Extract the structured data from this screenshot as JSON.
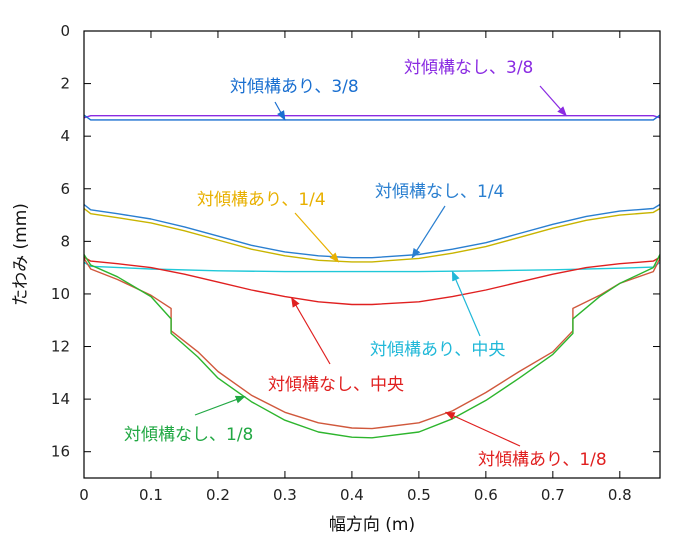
{
  "chart_data": {
    "type": "line",
    "xlabel": "幅方向 (m)",
    "ylabel": "たわみ (mm)",
    "xlim": [
      0,
      0.86
    ],
    "ylim": [
      0,
      17
    ],
    "y_inverted": true,
    "grid": false,
    "x_ticks": [
      "0",
      "0.1",
      "0.2",
      "0.3",
      "0.4",
      "0.5",
      "0.6",
      "0.7",
      "0.8"
    ],
    "x_tick_values": [
      0,
      0.1,
      0.2,
      0.3,
      0.4,
      0.5,
      0.6,
      0.7,
      0.8
    ],
    "y_ticks": [
      "0",
      "2",
      "4",
      "6",
      "8",
      "10",
      "12",
      "14",
      "16"
    ],
    "y_tick_values": [
      0,
      2,
      4,
      6,
      8,
      10,
      12,
      14,
      16
    ],
    "series": [
      {
        "name": "対傾構なし、3/8",
        "color": "#8a2be2",
        "x": [
          0,
          0.01,
          0.1,
          0.2,
          0.3,
          0.4,
          0.43,
          0.5,
          0.6,
          0.7,
          0.8,
          0.85,
          0.86
        ],
        "y": [
          3.3,
          3.22,
          3.22,
          3.22,
          3.22,
          3.22,
          3.22,
          3.22,
          3.22,
          3.22,
          3.22,
          3.22,
          3.3
        ]
      },
      {
        "name": "対傾構あり、3/8",
        "color": "#1a6fd0",
        "x": [
          0,
          0.01,
          0.1,
          0.2,
          0.3,
          0.4,
          0.43,
          0.5,
          0.6,
          0.7,
          0.8,
          0.85,
          0.86
        ],
        "y": [
          3.2,
          3.38,
          3.38,
          3.38,
          3.38,
          3.38,
          3.38,
          3.38,
          3.38,
          3.38,
          3.38,
          3.38,
          3.2
        ]
      },
      {
        "name": "対傾構なし、1/4",
        "color": "#2a7fd0",
        "x": [
          0,
          0.01,
          0.05,
          0.1,
          0.15,
          0.2,
          0.25,
          0.3,
          0.35,
          0.4,
          0.43,
          0.5,
          0.55,
          0.6,
          0.65,
          0.7,
          0.75,
          0.8,
          0.85,
          0.86
        ],
        "y": [
          6.6,
          6.8,
          6.95,
          7.15,
          7.45,
          7.8,
          8.15,
          8.4,
          8.55,
          8.62,
          8.62,
          8.5,
          8.3,
          8.05,
          7.7,
          7.35,
          7.05,
          6.85,
          6.75,
          6.6
        ]
      },
      {
        "name": "対傾構あり、1/4",
        "color": "#c8b400",
        "x": [
          0,
          0.01,
          0.05,
          0.1,
          0.15,
          0.2,
          0.25,
          0.3,
          0.35,
          0.4,
          0.43,
          0.5,
          0.55,
          0.6,
          0.65,
          0.7,
          0.75,
          0.8,
          0.85,
          0.86
        ],
        "y": [
          6.75,
          6.95,
          7.1,
          7.3,
          7.6,
          7.95,
          8.3,
          8.55,
          8.72,
          8.78,
          8.78,
          8.65,
          8.45,
          8.2,
          7.85,
          7.5,
          7.2,
          7.0,
          6.9,
          6.75
        ]
      },
      {
        "name": "対傾構あり、中央",
        "color": "#20c8d8",
        "x": [
          0,
          0.01,
          0.1,
          0.2,
          0.3,
          0.4,
          0.43,
          0.5,
          0.6,
          0.7,
          0.8,
          0.85,
          0.86
        ],
        "y": [
          8.8,
          8.95,
          9.05,
          9.12,
          9.15,
          9.15,
          9.15,
          9.15,
          9.12,
          9.08,
          9.02,
          8.98,
          8.8
        ]
      },
      {
        "name": "対傾構なし、中央",
        "color": "#e02020",
        "x": [
          0,
          0.01,
          0.05,
          0.1,
          0.15,
          0.2,
          0.25,
          0.3,
          0.35,
          0.4,
          0.43,
          0.5,
          0.55,
          0.6,
          0.65,
          0.7,
          0.75,
          0.8,
          0.85,
          0.86
        ],
        "y": [
          8.6,
          8.75,
          8.85,
          9.0,
          9.25,
          9.55,
          9.85,
          10.1,
          10.3,
          10.4,
          10.4,
          10.3,
          10.1,
          9.85,
          9.55,
          9.25,
          9.0,
          8.85,
          8.75,
          8.6
        ]
      },
      {
        "name": "対傾構あり、1/8",
        "color": "#d0583c",
        "x": [
          0,
          0.01,
          0.05,
          0.1,
          0.13,
          0.13,
          0.17,
          0.2,
          0.25,
          0.3,
          0.35,
          0.4,
          0.43,
          0.5,
          0.55,
          0.6,
          0.65,
          0.7,
          0.73,
          0.73,
          0.77,
          0.8,
          0.85,
          0.86
        ],
        "y": [
          8.65,
          9.05,
          9.45,
          10.05,
          10.55,
          11.4,
          12.2,
          12.95,
          13.85,
          14.5,
          14.9,
          15.1,
          15.12,
          14.9,
          14.45,
          13.75,
          12.95,
          12.2,
          11.4,
          10.55,
          10.05,
          9.6,
          9.15,
          8.65
        ]
      },
      {
        "name": "対傾構なし、1/8",
        "color": "#2db52d",
        "x": [
          0,
          0.01,
          0.05,
          0.1,
          0.13,
          0.13,
          0.17,
          0.2,
          0.25,
          0.3,
          0.35,
          0.4,
          0.43,
          0.5,
          0.55,
          0.6,
          0.65,
          0.7,
          0.73,
          0.73,
          0.77,
          0.8,
          0.85,
          0.86
        ],
        "y": [
          8.5,
          8.9,
          9.35,
          10.1,
          10.95,
          11.5,
          12.4,
          13.2,
          14.1,
          14.8,
          15.25,
          15.45,
          15.47,
          15.25,
          14.75,
          14.05,
          13.2,
          12.3,
          11.5,
          10.95,
          10.1,
          9.6,
          9.0,
          8.5
        ]
      }
    ],
    "annotations": [
      {
        "text": "対傾構あり、3/8",
        "color": "#1a6fd0",
        "series": 1,
        "tx": 0.3,
        "ty": 3.38
      },
      {
        "text": "対傾構なし、3/8",
        "color": "#8a2be2",
        "series": 0,
        "tx": 0.72,
        "ty": 3.22
      },
      {
        "text": "対傾構あり、1/4",
        "color": "#e8b000",
        "series": 3,
        "tx": 0.38,
        "ty": 8.78
      },
      {
        "text": "対傾構なし、1/4",
        "color": "#2a7fd0",
        "series": 2,
        "tx": 0.49,
        "ty": 8.62
      },
      {
        "text": "対傾構なし、中央",
        "color": "#e02020",
        "series": 5,
        "tx": 0.31,
        "ty": 10.15
      },
      {
        "text": "対傾構あり、中央",
        "color": "#20b8d8",
        "series": 4,
        "tx": 0.55,
        "ty": 9.15
      },
      {
        "text": "対傾構なし、1/8",
        "color": "#22a844",
        "series": 7,
        "tx": 0.24,
        "ty": 13.9
      },
      {
        "text": "対傾構あり、1/8",
        "color": "#e02020",
        "series": 6,
        "tx": 0.54,
        "ty": 14.5
      }
    ]
  }
}
